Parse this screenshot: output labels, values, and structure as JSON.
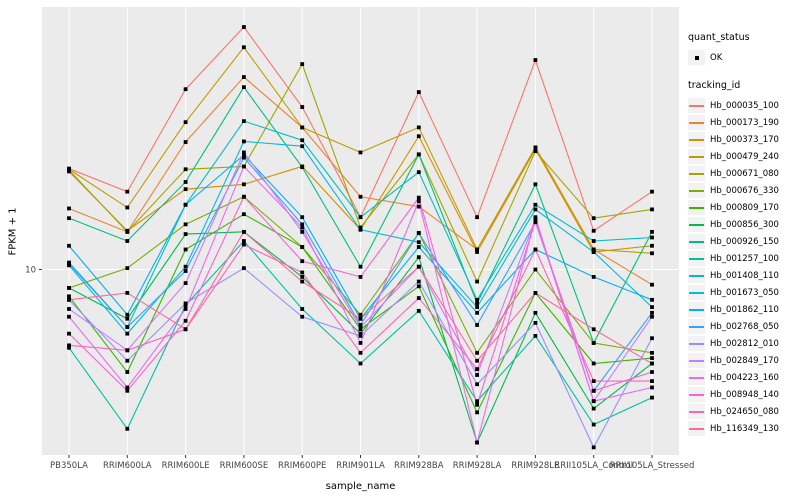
{
  "axes": {
    "x_title": "sample_name",
    "y_title": "FPKM + 1",
    "y_tick_label": "10"
  },
  "legend": {
    "quant_title": "quant_status",
    "ok_label": "OK",
    "tracking_title": "tracking_id"
  },
  "chart_data": {
    "type": "line",
    "title": "",
    "xlabel": "sample_name",
    "ylabel": "FPKM + 1",
    "y_scale": "log10",
    "ylim": [
      2.75,
      62.2
    ],
    "y_breaks": [
      10
    ],
    "grid": true,
    "legend_position": "right",
    "point_shape": "square",
    "point_color": "#000000",
    "panel_bg": "#EBEBEB",
    "grid_color": "#FFFFFF",
    "quant_status_values": [
      "OK"
    ],
    "x_categories": [
      "PB350LA",
      "RRIM600LA",
      "RRIM600LE",
      "RRIM600SE",
      "RRIM600PE",
      "RRIM901LA",
      "RRIM928BA",
      "RRIM928LA",
      "RRIM928LE",
      "RRII105LA_Control",
      "RRII105LA_Stressed"
    ],
    "series": [
      {
        "name": "Hb_000035_100",
        "color": "#F8766D",
        "values": [
          20.2,
          17.2,
          35.1,
          54.1,
          31.0,
          14.4,
          34.4,
          14.4,
          43.0,
          13.1,
          17.2
        ]
      },
      {
        "name": "Hb_000173_190",
        "color": "#EA8331",
        "values": [
          15.3,
          13.0,
          24.3,
          38.2,
          26.9,
          16.6,
          15.5,
          11.5,
          23.4,
          11.5,
          9.0
        ]
      },
      {
        "name": "Hb_000373_170",
        "color": "#D89000",
        "values": [
          19.8,
          13.1,
          17.5,
          18.1,
          20.5,
          13.2,
          25.3,
          11.3,
          23.1,
          11.3,
          11.8
        ]
      },
      {
        "name": "Hb_000479_240",
        "color": "#C09B00",
        "values": [
          20.1,
          15.4,
          27.9,
          47.0,
          26.9,
          22.6,
          26.9,
          11.5,
          23.4,
          11.5,
          11.2
        ]
      },
      {
        "name": "Hb_000671_080",
        "color": "#A3A500",
        "values": [
          20.0,
          13.0,
          20.1,
          20.5,
          41.8,
          13.4,
          22.3,
          9.2,
          22.8,
          14.3,
          15.2
        ]
      },
      {
        "name": "Hb_000676_330",
        "color": "#7CAE00",
        "values": [
          8.8,
          10.1,
          13.7,
          16.6,
          11.7,
          7.3,
          12.9,
          5.6,
          10.0,
          6.0,
          5.6
        ]
      },
      {
        "name": "Hb_000809_170",
        "color": "#39B600",
        "values": [
          8.3,
          4.9,
          11.5,
          14.7,
          11.7,
          6.6,
          8.9,
          3.7,
          8.5,
          5.2,
          5.4
        ]
      },
      {
        "name": "Hb_000856_300",
        "color": "#00BB4E",
        "values": [
          8.8,
          7.1,
          12.8,
          13.0,
          9.5,
          6.4,
          10.9,
          3.0,
          7.4,
          3.8,
          5.2
        ]
      },
      {
        "name": "Hb_000926_150",
        "color": "#00BF7D",
        "values": [
          14.3,
          12.2,
          18.4,
          35.6,
          20.4,
          10.2,
          22.3,
          7.9,
          18.1,
          6.0,
          13.0
        ]
      },
      {
        "name": "Hb_001257_100",
        "color": "#00C1A3",
        "values": [
          5.8,
          3.3,
          7.8,
          12.2,
          7.6,
          5.2,
          7.5,
          4.0,
          6.3,
          3.4,
          4.1
        ]
      },
      {
        "name": "Hb_001408_110",
        "color": "#00BFC4",
        "values": [
          10.5,
          6.7,
          15.7,
          28.1,
          24.6,
          14.4,
          19.7,
          8.1,
          15.7,
          12.2,
          12.5
        ]
      },
      {
        "name": "Hb_001673_050",
        "color": "#00BAE0",
        "values": [
          10.3,
          6.4,
          10.2,
          24.4,
          23.6,
          13.2,
          12.1,
          7.7,
          15.2,
          11.3,
          7.7
        ]
      },
      {
        "name": "Hb_001862_110",
        "color": "#00B0F6",
        "values": [
          11.8,
          7.3,
          15.7,
          22.2,
          14.4,
          7.1,
          11.7,
          7.4,
          11.5,
          9.5,
          8.1
        ]
      },
      {
        "name": "Hb_002768_050",
        "color": "#35A2FF",
        "values": [
          10.4,
          6.7,
          9.9,
          21.8,
          13.7,
          6.8,
          12.9,
          6.8,
          13.9,
          4.3,
          7.4
        ]
      },
      {
        "name": "Hb_002812_010",
        "color": "#9590FF",
        "values": [
          8.1,
          5.3,
          7.9,
          10.1,
          7.2,
          6.3,
          9.2,
          4.5,
          6.9,
          2.9,
          6.2
        ]
      },
      {
        "name": "Hb_002849_170",
        "color": "#C77CFF",
        "values": [
          7.6,
          5.7,
          9.1,
          22.6,
          13.0,
          6.7,
          10.2,
          4.8,
          14.2,
          4.0,
          7.2
        ]
      },
      {
        "name": "Hb_004223_160",
        "color": "#E76BF3",
        "values": [
          7.2,
          4.4,
          7.6,
          20.5,
          13.4,
          6.0,
          16.1,
          3.0,
          14.4,
          4.0,
          4.4
        ]
      },
      {
        "name": "Hb_008948_140",
        "color": "#FA62DB",
        "values": [
          6.4,
          4.3,
          7.0,
          16.6,
          10.6,
          9.5,
          16.5,
          3.9,
          14.0,
          4.3,
          4.9
        ]
      },
      {
        "name": "Hb_024650_080",
        "color": "#FF62BC",
        "values": [
          5.9,
          5.7,
          6.6,
          11.9,
          9.8,
          5.6,
          8.2,
          5.0,
          11.5,
          4.6,
          4.6
        ]
      },
      {
        "name": "Hb_116349_130",
        "color": "#FF6A98",
        "values": [
          8.1,
          8.5,
          6.6,
          13.0,
          9.2,
          7.1,
          10.2,
          5.3,
          8.5,
          6.6,
          5.2
        ]
      }
    ]
  }
}
